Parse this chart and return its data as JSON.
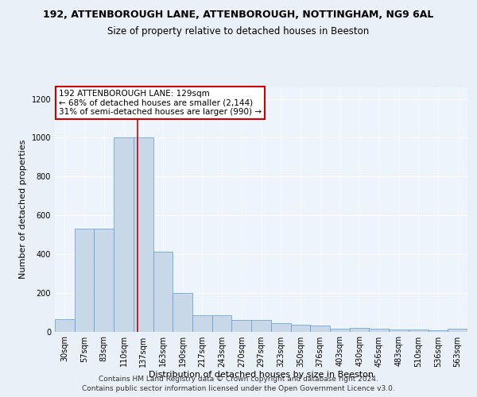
{
  "title1": "192, ATTENBOROUGH LANE, ATTENBOROUGH, NOTTINGHAM, NG9 6AL",
  "title2": "Size of property relative to detached houses in Beeston",
  "xlabel": "Distribution of detached houses by size in Beeston",
  "ylabel": "Number of detached properties",
  "bar_color": "#c8d8e8",
  "bar_edge_color": "#5b9bd5",
  "bins": [
    "30sqm",
    "57sqm",
    "83sqm",
    "110sqm",
    "137sqm",
    "163sqm",
    "190sqm",
    "217sqm",
    "243sqm",
    "270sqm",
    "297sqm",
    "323sqm",
    "350sqm",
    "376sqm",
    "403sqm",
    "430sqm",
    "456sqm",
    "483sqm",
    "510sqm",
    "536sqm",
    "563sqm"
  ],
  "values": [
    65,
    530,
    530,
    1000,
    1000,
    410,
    200,
    85,
    85,
    60,
    60,
    45,
    35,
    30,
    15,
    20,
    15,
    10,
    10,
    7,
    15
  ],
  "ylim": [
    0,
    1260
  ],
  "yticks": [
    0,
    200,
    400,
    600,
    800,
    1000,
    1200
  ],
  "vline_pos": 3.7,
  "vline_color": "#cc0000",
  "annotation_text": "192 ATTENBOROUGH LANE: 129sqm\n← 68% of detached houses are smaller (2,144)\n31% of semi-detached houses are larger (990) →",
  "annotation_box_color": "white",
  "annotation_box_edge": "#cc0000",
  "footer1": "Contains HM Land Registry data © Crown copyright and database right 2024.",
  "footer2": "Contains public sector information licensed under the Open Government Licence v3.0.",
  "bg_color": "#eaf0f8",
  "plot_bg_color": "#eef4fc",
  "grid_color": "white",
  "title1_fontsize": 9,
  "title2_fontsize": 8.5,
  "xlabel_fontsize": 8,
  "ylabel_fontsize": 8,
  "tick_fontsize": 7,
  "footer_fontsize": 6.5,
  "ann_fontsize": 7.5
}
